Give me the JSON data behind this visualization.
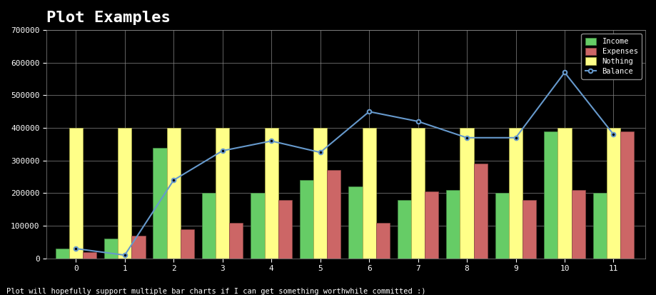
{
  "title": "Plot Examples",
  "subtitle": "Plot will hopefully support multiple bar charts if I can get something worthwhile committed :)",
  "background_color": "#000000",
  "plot_bg_color": "#000000",
  "text_color": "#ffffff",
  "categories": [
    0,
    1,
    2,
    3,
    4,
    5,
    6,
    7,
    8,
    9,
    10,
    11
  ],
  "income": [
    30000,
    60000,
    340000,
    200000,
    200000,
    240000,
    220000,
    180000,
    210000,
    200000,
    390000,
    200000
  ],
  "expenses": [
    20000,
    70000,
    90000,
    110000,
    180000,
    270000,
    110000,
    205000,
    290000,
    180000,
    210000,
    390000
  ],
  "nothing": [
    400000,
    400000,
    400000,
    400000,
    400000,
    400000,
    400000,
    400000,
    400000,
    400000,
    400000,
    400000
  ],
  "balance": [
    30000,
    10000,
    240000,
    330000,
    360000,
    325000,
    450000,
    420000,
    370000,
    370000,
    570000,
    380000
  ],
  "income_color": "#66cc66",
  "expenses_color": "#cc6666",
  "nothing_color": "#ffff88",
  "balance_color": "#6699cc",
  "grid_color": "#888888",
  "ylim": [
    0,
    700000
  ],
  "yticks": [
    0,
    100000,
    200000,
    300000,
    400000,
    500000,
    600000,
    700000
  ],
  "ytick_labels": [
    "0",
    "100000",
    "200000",
    "300000",
    "400000",
    "500000",
    "600000",
    "700000"
  ],
  "bar_width": 0.28,
  "legend_labels": [
    "Income",
    "Expenses",
    "Nothing",
    "Balance"
  ]
}
